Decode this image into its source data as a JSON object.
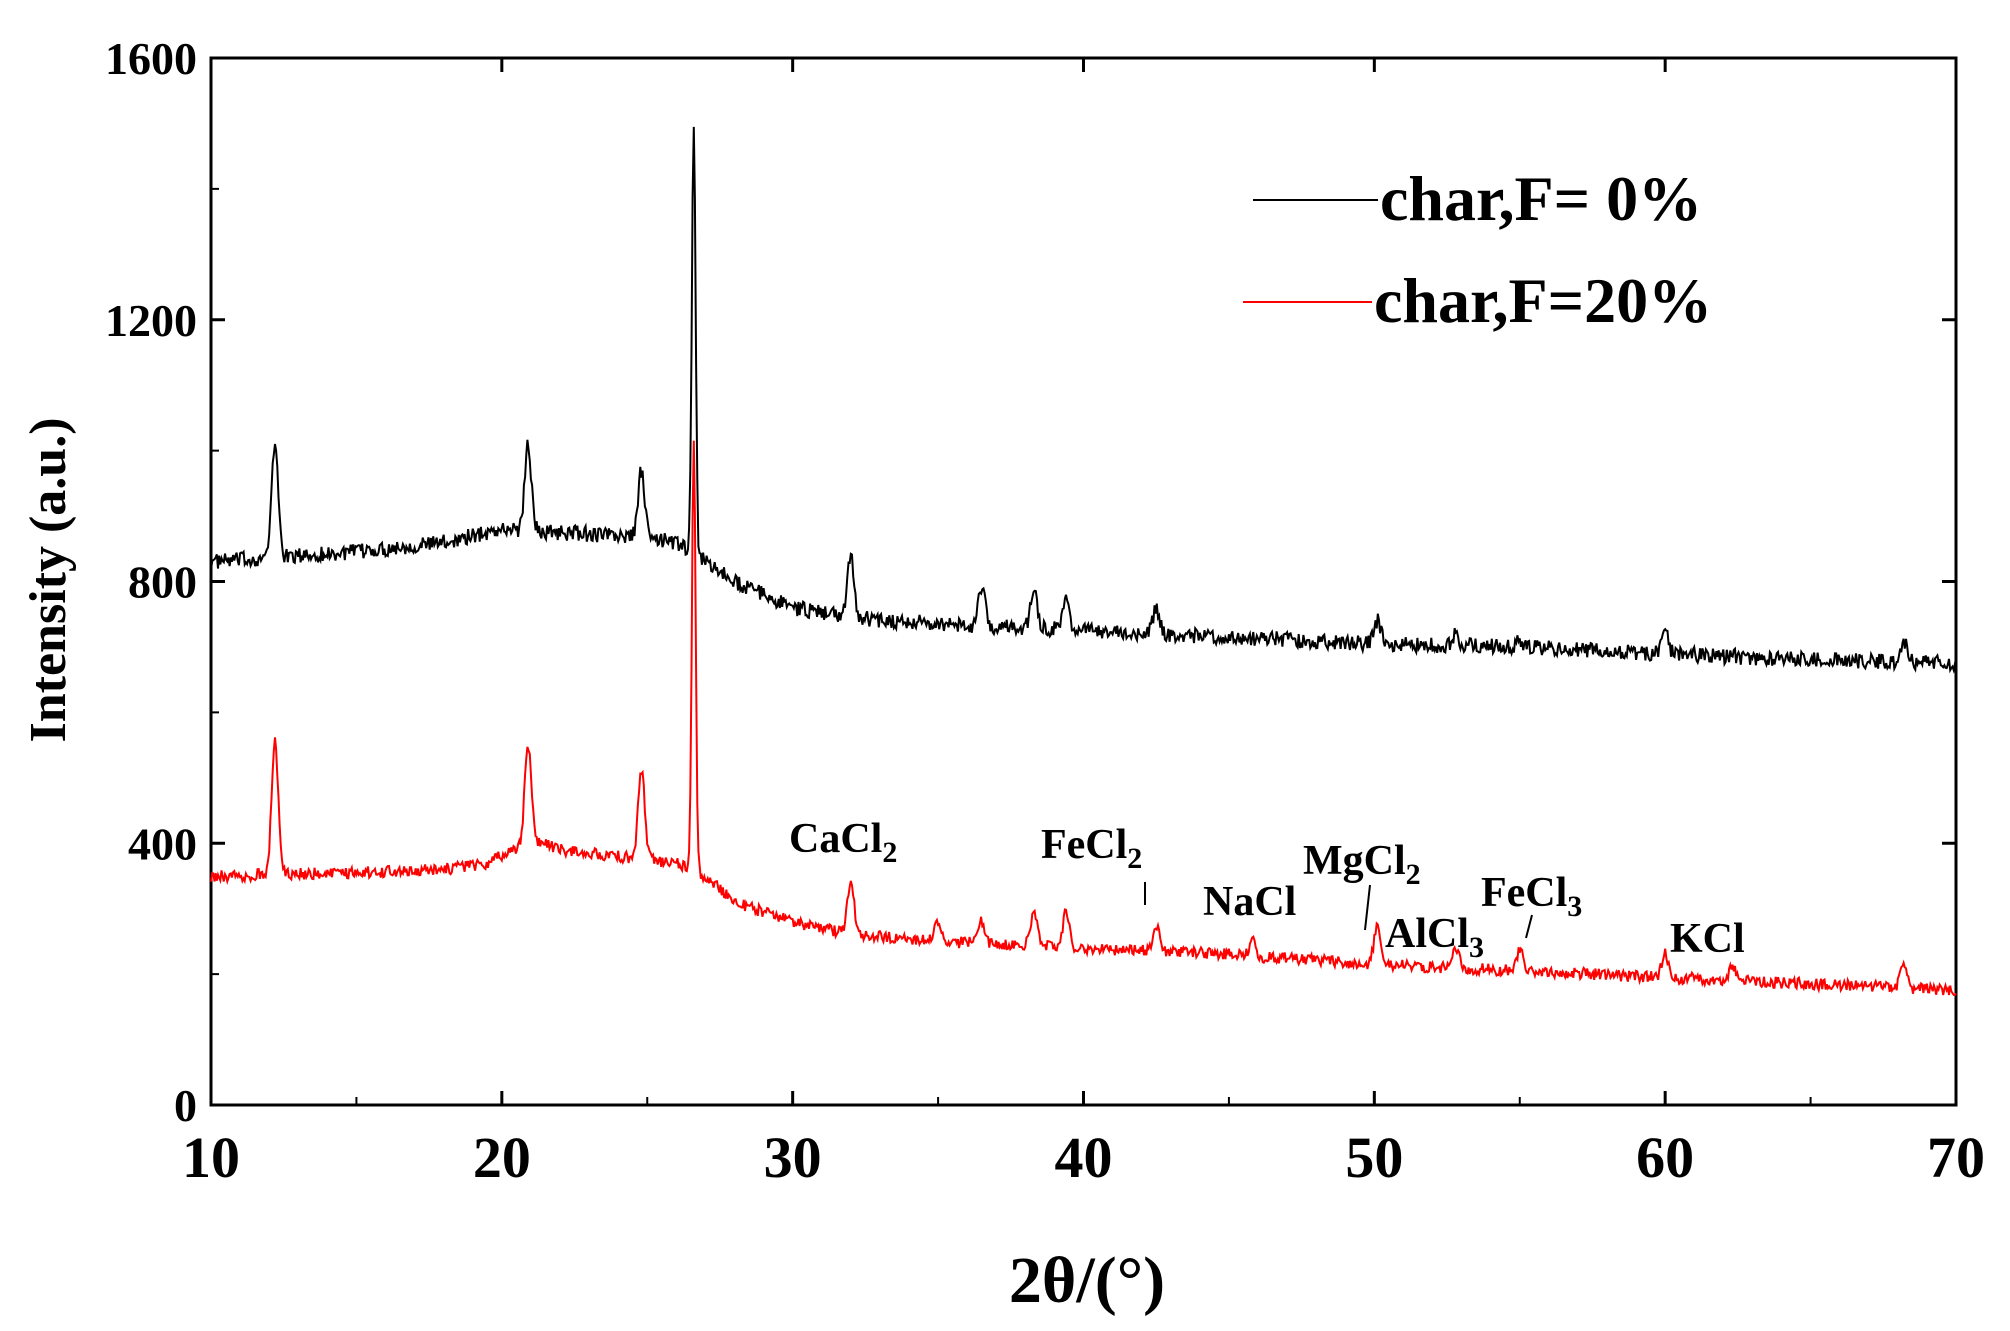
{
  "chart_data": {
    "type": "line",
    "xlabel": "2θ/(°)",
    "ylabel": "Intensity (a.u.)",
    "xlim": [
      10,
      70
    ],
    "ylim": [
      0,
      1600
    ],
    "xticks": [
      10,
      20,
      30,
      40,
      50,
      60,
      70
    ],
    "xtick_labels": [
      "10",
      "20",
      "30",
      "40",
      "50",
      "60",
      "70"
    ],
    "yticks": [
      0,
      400,
      800,
      1200,
      1600
    ],
    "ytick_labels": [
      "0",
      "400",
      "800",
      "1200",
      "1600"
    ],
    "grid": false,
    "legend_position": "top-right",
    "series": [
      {
        "name": "char,F= 0%",
        "color": "#000000",
        "baseline": [
          [
            10,
            830
          ],
          [
            15,
            845
          ],
          [
            18,
            860
          ],
          [
            20,
            880
          ],
          [
            22,
            875
          ],
          [
            24,
            870
          ],
          [
            26,
            860
          ],
          [
            28,
            800
          ],
          [
            30,
            760
          ],
          [
            32,
            745
          ],
          [
            35,
            735
          ],
          [
            40,
            725
          ],
          [
            45,
            715
          ],
          [
            50,
            705
          ],
          [
            55,
            700
          ],
          [
            60,
            690
          ],
          [
            65,
            680
          ],
          [
            70,
            675
          ]
        ],
        "peaks": [
          [
            12.2,
            1010
          ],
          [
            20.9,
            1010
          ],
          [
            24.8,
            970
          ],
          [
            26.6,
            1500
          ],
          [
            32.0,
            840
          ],
          [
            36.5,
            790
          ],
          [
            38.3,
            790
          ],
          [
            39.4,
            780
          ],
          [
            42.5,
            760
          ],
          [
            50.1,
            740
          ],
          [
            52.8,
            720
          ],
          [
            55.0,
            710
          ],
          [
            60.0,
            725
          ],
          [
            68.2,
            710
          ]
        ],
        "noise": 12
      },
      {
        "name": "char,F=20%",
        "color": "#ff0000",
        "baseline": [
          [
            10,
            350
          ],
          [
            15,
            355
          ],
          [
            18,
            360
          ],
          [
            19.5,
            370
          ],
          [
            21,
            405
          ],
          [
            22,
            390
          ],
          [
            24,
            380
          ],
          [
            26,
            370
          ],
          [
            27,
            350
          ],
          [
            28,
            310
          ],
          [
            30,
            280
          ],
          [
            32,
            260
          ],
          [
            35,
            250
          ],
          [
            40,
            240
          ],
          [
            45,
            230
          ],
          [
            50,
            215
          ],
          [
            55,
            205
          ],
          [
            60,
            195
          ],
          [
            65,
            185
          ],
          [
            70,
            175
          ]
        ],
        "peaks": [
          [
            12.2,
            555
          ],
          [
            20.9,
            545
          ],
          [
            24.8,
            510
          ],
          [
            26.6,
            1020
          ],
          [
            32.0,
            340
          ],
          [
            35.0,
            280
          ],
          [
            36.5,
            280
          ],
          [
            38.3,
            295
          ],
          [
            39.4,
            295
          ],
          [
            42.5,
            275
          ],
          [
            45.8,
            250
          ],
          [
            50.1,
            270
          ],
          [
            52.8,
            240
          ],
          [
            55.0,
            235
          ],
          [
            60.0,
            230
          ],
          [
            62.3,
            210
          ],
          [
            68.2,
            220
          ]
        ],
        "noise": 9
      }
    ],
    "annotations": [
      {
        "label": "CaCl",
        "sub": "2",
        "x": 32.0
      },
      {
        "label": "FeCl",
        "sub": "2",
        "x": 42.5
      },
      {
        "label": "NaCl",
        "sub": "",
        "x": 45.8
      },
      {
        "label": "MgCl",
        "sub": "2",
        "x": 50.1
      },
      {
        "label": "AlCl",
        "sub": "3",
        "x": 52.8
      },
      {
        "label": "FeCl",
        "sub": "3",
        "x": 55.0
      },
      {
        "label": "KCl",
        "sub": "",
        "x": 62.0
      }
    ]
  }
}
